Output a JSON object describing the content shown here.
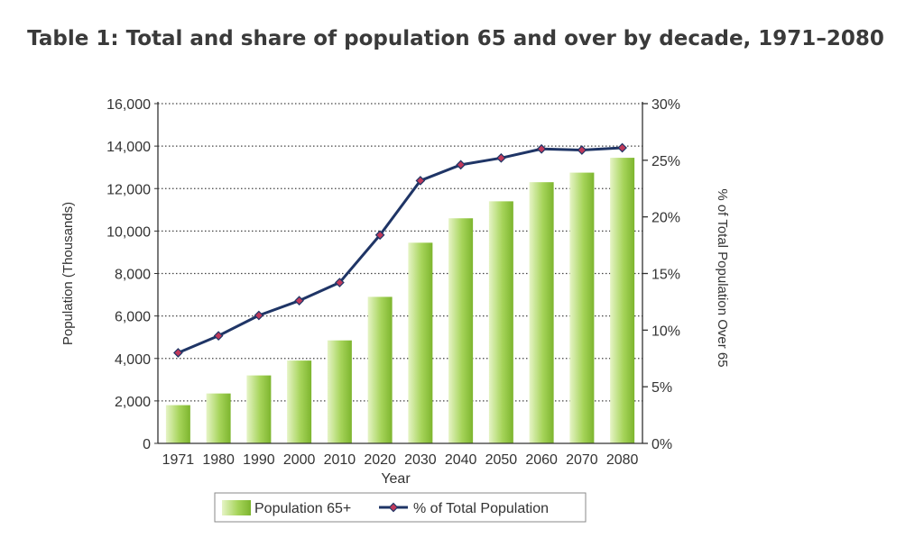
{
  "page": {
    "title": "Table 1: Total and share of population 65 and over by decade, 1971–2080"
  },
  "chart_data": {
    "type": "bar",
    "title": "Table 1: Total and share of population 65 and over by decade, 1971–2080",
    "xlabel": "Year",
    "ylabel": "Population (Thousands)",
    "y2label": "% of Total Population Over 65",
    "categories": [
      "1971",
      "1980",
      "1990",
      "2000",
      "2010",
      "2020",
      "2030",
      "2040",
      "2050",
      "2060",
      "2070",
      "2080"
    ],
    "ylim": [
      0,
      16000
    ],
    "y2lim": [
      0,
      30
    ],
    "yticks": [
      0,
      2000,
      4000,
      6000,
      8000,
      10000,
      12000,
      14000,
      16000
    ],
    "ytick_labels": [
      "0",
      "2,000",
      "4,000",
      "6,000",
      "8,000",
      "10,000",
      "12,000",
      "14,000",
      "16,000"
    ],
    "y2ticks": [
      0,
      5,
      10,
      15,
      20,
      25,
      30
    ],
    "y2tick_labels": [
      "0%",
      "5%",
      "10%",
      "15%",
      "20%",
      "25%",
      "30%"
    ],
    "grid": true,
    "legend_position": "bottom",
    "series": [
      {
        "name": "Population 65+",
        "type": "bar",
        "axis": "left",
        "color": "#8cc43c",
        "values": [
          1800,
          2350,
          3200,
          3900,
          4850,
          6900,
          9450,
          10600,
          11400,
          12300,
          12750,
          13450
        ]
      },
      {
        "name": "% of Total Population",
        "type": "line",
        "axis": "right",
        "color": "#1f3566",
        "marker_color": "#c0395b",
        "values": [
          8.0,
          9.5,
          11.3,
          12.6,
          14.2,
          18.4,
          23.2,
          24.6,
          25.2,
          26.0,
          25.9,
          26.1
        ]
      }
    ]
  }
}
